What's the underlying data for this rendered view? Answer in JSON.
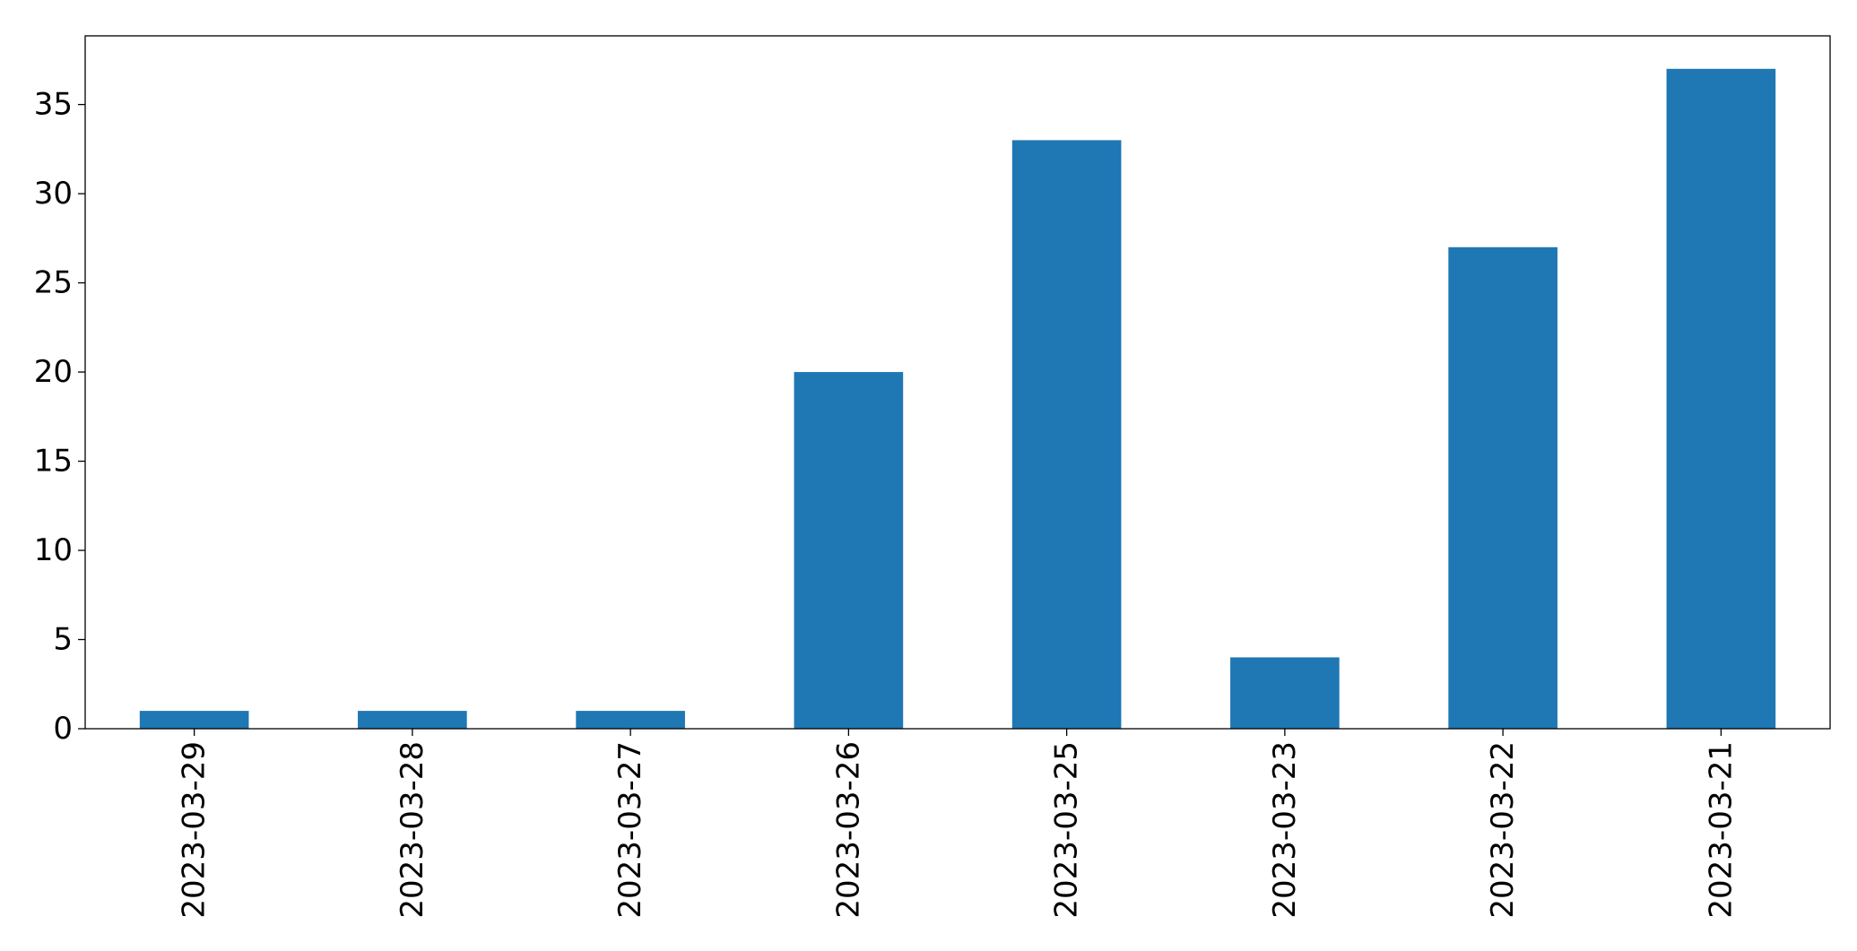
{
  "chart_data": {
    "type": "bar",
    "title": "",
    "xlabel": "",
    "ylabel": "",
    "categories": [
      "2023-03-29",
      "2023-03-28",
      "2023-03-27",
      "2023-03-26",
      "2023-03-25",
      "2023-03-23",
      "2023-03-22",
      "2023-03-21"
    ],
    "values": [
      1,
      1,
      1,
      20,
      33,
      4,
      27,
      37
    ],
    "ylim": [
      0,
      38.85
    ],
    "yticks": [
      0,
      5,
      10,
      15,
      20,
      25,
      30,
      35
    ],
    "x_tick_rotation": "vertical",
    "grid": false,
    "legend": "none",
    "bar_color": "#1f77b4"
  }
}
